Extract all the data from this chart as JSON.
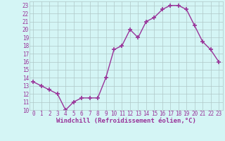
{
  "x": [
    0,
    1,
    2,
    3,
    4,
    5,
    6,
    7,
    8,
    9,
    10,
    11,
    12,
    13,
    14,
    15,
    16,
    17,
    18,
    19,
    20,
    21,
    22,
    23
  ],
  "y": [
    13.5,
    13.0,
    12.5,
    12.0,
    10.0,
    11.0,
    11.5,
    11.5,
    11.5,
    14.0,
    17.5,
    18.0,
    20.0,
    19.0,
    21.0,
    21.5,
    22.5,
    23.0,
    23.0,
    22.5,
    20.5,
    18.5,
    17.5,
    16.0
  ],
  "line_color": "#993399",
  "marker": "+",
  "marker_size": 4,
  "marker_lw": 1.2,
  "bg_color": "#d4f5f5",
  "grid_color": "#b0c8c8",
  "xlabel": "Windchill (Refroidissement éolien,°C)",
  "tick_color": "#993399",
  "xlim": [
    -0.5,
    23.5
  ],
  "ylim": [
    10,
    23.5
  ],
  "yticks": [
    10,
    11,
    12,
    13,
    14,
    15,
    16,
    17,
    18,
    19,
    20,
    21,
    22,
    23
  ],
  "xticks": [
    0,
    1,
    2,
    3,
    4,
    5,
    6,
    7,
    8,
    9,
    10,
    11,
    12,
    13,
    14,
    15,
    16,
    17,
    18,
    19,
    20,
    21,
    22,
    23
  ],
  "tick_label_size": 5.5,
  "xlabel_size": 6.5,
  "line_width": 1.0
}
